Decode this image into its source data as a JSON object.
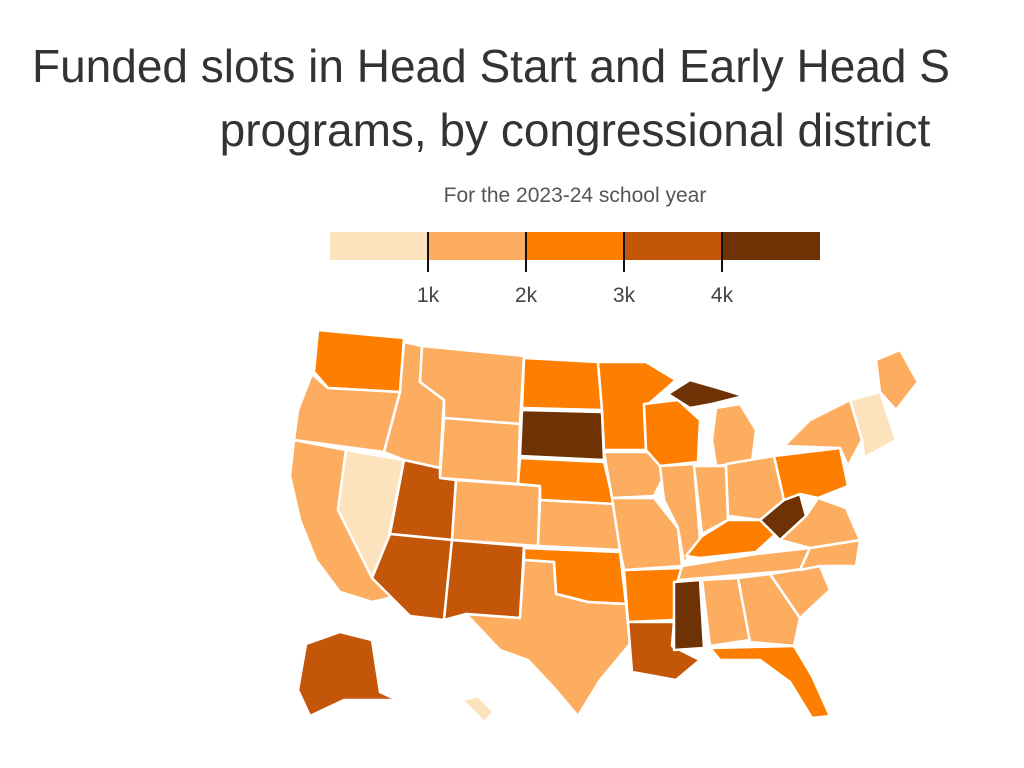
{
  "title_line1": "Funded slots in Head Start and Early Head S",
  "title_line2": "programs, by congressional district",
  "subtitle": "For the 2023-24 school year",
  "legend": {
    "colors": [
      "#fde3bd",
      "#fdad5f",
      "#fe7f00",
      "#c35608",
      "#6e3205"
    ],
    "ticks": [
      "1k",
      "2k",
      "3k",
      "4k"
    ]
  },
  "map": {
    "border_color": "#ffffff",
    "regions": [
      {
        "name": "washington",
        "bin": 2
      },
      {
        "name": "oregon",
        "bin": 1
      },
      {
        "name": "california",
        "bin": 1
      },
      {
        "name": "nevada",
        "bin": 0
      },
      {
        "name": "idaho",
        "bin": 1
      },
      {
        "name": "montana",
        "bin": 1
      },
      {
        "name": "wyoming",
        "bin": 1
      },
      {
        "name": "utah",
        "bin": 3
      },
      {
        "name": "colorado",
        "bin": 1
      },
      {
        "name": "arizona",
        "bin": 3
      },
      {
        "name": "new-mexico",
        "bin": 3
      },
      {
        "name": "north-dakota",
        "bin": 2
      },
      {
        "name": "south-dakota",
        "bin": 4
      },
      {
        "name": "nebraska",
        "bin": 2
      },
      {
        "name": "kansas",
        "bin": 1
      },
      {
        "name": "oklahoma",
        "bin": 2
      },
      {
        "name": "texas",
        "bin": 1
      },
      {
        "name": "minnesota",
        "bin": 2
      },
      {
        "name": "iowa",
        "bin": 1
      },
      {
        "name": "missouri",
        "bin": 1
      },
      {
        "name": "arkansas",
        "bin": 2
      },
      {
        "name": "louisiana",
        "bin": 3
      },
      {
        "name": "wisconsin",
        "bin": 2
      },
      {
        "name": "illinois",
        "bin": 1
      },
      {
        "name": "michigan",
        "bin": 1
      },
      {
        "name": "michigan-upper",
        "bin": 4
      },
      {
        "name": "indiana",
        "bin": 1
      },
      {
        "name": "ohio",
        "bin": 1
      },
      {
        "name": "kentucky",
        "bin": 2
      },
      {
        "name": "tennessee",
        "bin": 1
      },
      {
        "name": "mississippi",
        "bin": 4
      },
      {
        "name": "alabama",
        "bin": 1
      },
      {
        "name": "georgia",
        "bin": 1
      },
      {
        "name": "florida",
        "bin": 2
      },
      {
        "name": "south-carolina",
        "bin": 1
      },
      {
        "name": "north-carolina",
        "bin": 1
      },
      {
        "name": "virginia",
        "bin": 1
      },
      {
        "name": "west-virginia",
        "bin": 4
      },
      {
        "name": "pennsylvania",
        "bin": 2
      },
      {
        "name": "new-york",
        "bin": 1
      },
      {
        "name": "new-england",
        "bin": 0
      },
      {
        "name": "maine",
        "bin": 1
      },
      {
        "name": "alaska",
        "bin": 3
      },
      {
        "name": "hawaii",
        "bin": 0
      }
    ]
  }
}
